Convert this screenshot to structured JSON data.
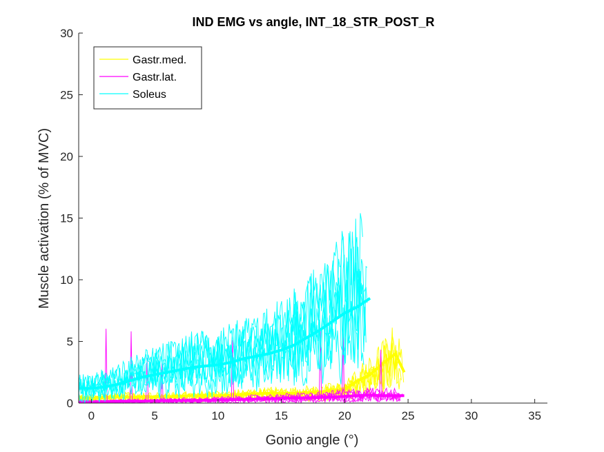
{
  "chart_data": {
    "type": "line",
    "title": "IND EMG vs angle, INT_18_STR_POST_R",
    "xlabel": "Gonio angle (°)",
    "ylabel": "Muscle activation (% of MVC)",
    "xlim": [
      -1,
      36
    ],
    "ylim": [
      0,
      30
    ],
    "x_ticks": [
      "0",
      "5",
      "10",
      "15",
      "20",
      "25",
      "30",
      "35"
    ],
    "y_ticks": [
      "0",
      "5",
      "10",
      "15",
      "20",
      "25",
      "30"
    ],
    "legend_position": "top-left",
    "grid": false,
    "series": [
      {
        "name": "Gastr.med.",
        "color": "#ffff00",
        "mean": {
          "x": [
            -1,
            0,
            2,
            4,
            6,
            8,
            10,
            12,
            14,
            16,
            18,
            19,
            20,
            21,
            22,
            23,
            24,
            24.7
          ],
          "y": [
            0.4,
            0.4,
            0.5,
            0.5,
            0.5,
            0.6,
            0.6,
            0.7,
            0.8,
            0.8,
            0.9,
            1.0,
            1.1,
            1.8,
            2.3,
            3.2,
            4.0,
            2.5
          ]
        }
      },
      {
        "name": "Gastr.lat.",
        "color": "#ff00ff",
        "mean": {
          "x": [
            -1,
            0,
            2,
            4,
            6,
            8,
            10,
            12,
            14,
            16,
            18,
            20,
            21,
            22,
            23,
            24,
            24.7
          ],
          "y": [
            0.1,
            0.1,
            0.15,
            0.15,
            0.2,
            0.2,
            0.25,
            0.3,
            0.35,
            0.4,
            0.45,
            0.55,
            0.6,
            0.65,
            0.6,
            0.6,
            0.6
          ]
        }
      },
      {
        "name": "Soleus",
        "color": "#00ffff",
        "mean": {
          "x": [
            -1,
            0,
            1,
            2,
            3,
            4,
            5,
            6,
            7,
            8,
            9,
            10,
            11,
            12,
            13,
            14,
            15,
            16,
            17,
            18,
            19,
            20,
            21,
            22
          ],
          "y": [
            1.2,
            1.2,
            1.3,
            1.5,
            1.8,
            2.1,
            2.3,
            2.5,
            2.7,
            2.9,
            3.0,
            3.1,
            3.3,
            3.6,
            3.8,
            4.0,
            4.3,
            4.7,
            5.3,
            5.9,
            6.6,
            7.3,
            7.8,
            8.5
          ]
        }
      }
    ]
  }
}
